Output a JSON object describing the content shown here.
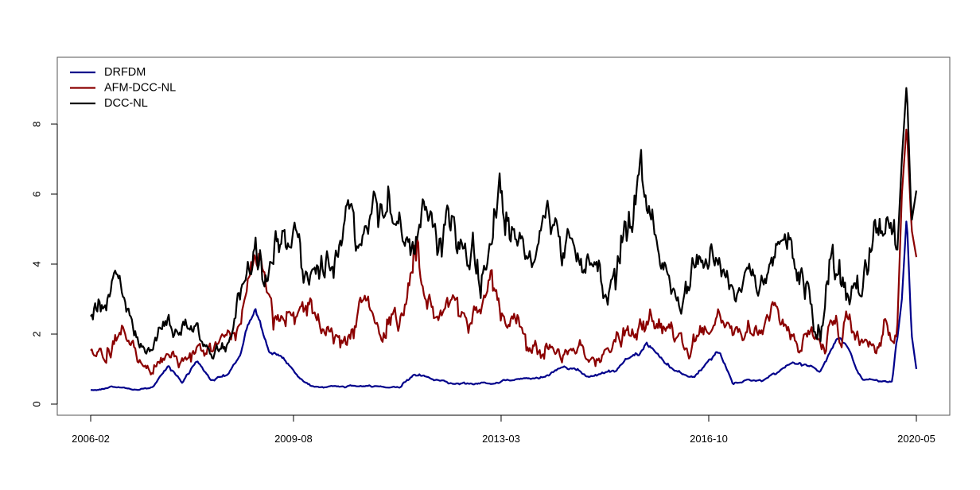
{
  "chart_data": {
    "type": "line",
    "title": "",
    "xlabel": "",
    "ylabel": "",
    "x_start": "2006-02",
    "x_end": "2020-05",
    "x_step": "week",
    "xlim": [
      "2006-02",
      "2020-05"
    ],
    "ylim": [
      0,
      9.3
    ],
    "x_ticks": [
      "2006-02",
      "2009-08",
      "2013-03",
      "2016-10",
      "2020-05"
    ],
    "y_ticks": [
      0,
      2,
      4,
      6,
      8
    ],
    "legend_position": "top-left",
    "grid": false,
    "series": [
      {
        "name": "DRFDM",
        "color": "#00008b",
        "key_points": [
          [
            "2006-02",
            0.4
          ],
          [
            "2006-07",
            0.5
          ],
          [
            "2006-12",
            0.4
          ],
          [
            "2007-03",
            0.5
          ],
          [
            "2007-06",
            1.1
          ],
          [
            "2007-09",
            0.6
          ],
          [
            "2007-12",
            1.2
          ],
          [
            "2008-03",
            0.7
          ],
          [
            "2008-06",
            0.8
          ],
          [
            "2008-09",
            1.4
          ],
          [
            "2008-12",
            2.7
          ],
          [
            "2009-03",
            1.5
          ],
          [
            "2009-06",
            1.3
          ],
          [
            "2009-09",
            0.8
          ],
          [
            "2009-12",
            0.5
          ],
          [
            "2010-06",
            0.5
          ],
          [
            "2011-01",
            0.5
          ],
          [
            "2011-06",
            0.5
          ],
          [
            "2011-09",
            0.9
          ],
          [
            "2012-01",
            0.7
          ],
          [
            "2012-06",
            0.6
          ],
          [
            "2012-12",
            0.6
          ],
          [
            "2013-06",
            0.7
          ],
          [
            "2013-12",
            0.8
          ],
          [
            "2014-03",
            1.1
          ],
          [
            "2014-09",
            0.8
          ],
          [
            "2015-03",
            1.0
          ],
          [
            "2015-09",
            1.7
          ],
          [
            "2016-03",
            1.0
          ],
          [
            "2016-07",
            0.8
          ],
          [
            "2016-12",
            1.5
          ],
          [
            "2017-03",
            0.6
          ],
          [
            "2017-09",
            0.7
          ],
          [
            "2018-03",
            1.2
          ],
          [
            "2018-09",
            1.0
          ],
          [
            "2019-01",
            2.0
          ],
          [
            "2019-06",
            0.7
          ],
          [
            "2019-12",
            0.6
          ],
          [
            "2020-02",
            3.0
          ],
          [
            "2020-03",
            5.4
          ],
          [
            "2020-04",
            2.0
          ],
          [
            "2020-05",
            1.0
          ]
        ]
      },
      {
        "name": "AFM-DCC-NL",
        "color": "#8b0000",
        "key_points": [
          [
            "2006-02",
            1.5
          ],
          [
            "2006-05",
            1.7
          ],
          [
            "2006-09",
            2.6
          ],
          [
            "2006-12",
            1.3
          ],
          [
            "2007-03",
            1.4
          ],
          [
            "2007-06",
            1.7
          ],
          [
            "2007-09",
            1.5
          ],
          [
            "2007-12",
            1.8
          ],
          [
            "2008-03",
            1.4
          ],
          [
            "2008-06",
            1.6
          ],
          [
            "2008-09",
            1.9
          ],
          [
            "2008-12",
            3.9
          ],
          [
            "2009-03",
            3.3
          ],
          [
            "2009-06",
            3.2
          ],
          [
            "2009-09",
            2.8
          ],
          [
            "2009-12",
            2.5
          ],
          [
            "2010-06",
            2.5
          ],
          [
            "2011-01",
            2.4
          ],
          [
            "2011-06",
            2.5
          ],
          [
            "2011-09",
            3.9
          ],
          [
            "2012-01",
            2.5
          ],
          [
            "2012-06",
            2.5
          ],
          [
            "2012-12",
            2.6
          ],
          [
            "2013-01",
            3.5
          ],
          [
            "2013-04",
            2.3
          ],
          [
            "2013-09",
            2.2
          ],
          [
            "2014-01",
            1.6
          ],
          [
            "2014-06",
            1.5
          ],
          [
            "2014-12",
            1.4
          ],
          [
            "2015-03",
            2.0
          ],
          [
            "2015-09",
            2.2
          ],
          [
            "2016-01",
            2.2
          ],
          [
            "2016-06",
            1.6
          ],
          [
            "2016-12",
            2.1
          ],
          [
            "2017-04",
            1.7
          ],
          [
            "2017-09",
            2.4
          ],
          [
            "2018-03",
            2.6
          ],
          [
            "2018-09",
            1.7
          ],
          [
            "2019-01",
            2.6
          ],
          [
            "2019-06",
            1.8
          ],
          [
            "2019-12",
            2.2
          ],
          [
            "2020-01",
            2.0
          ],
          [
            "2020-02",
            6.0
          ],
          [
            "2020-03",
            8.0
          ],
          [
            "2020-04",
            5.0
          ],
          [
            "2020-05",
            4.2
          ]
        ]
      },
      {
        "name": "DCC-NL",
        "color": "#000000",
        "key_points": [
          [
            "2006-02",
            2.6
          ],
          [
            "2006-05",
            3.1
          ],
          [
            "2006-09",
            3.0
          ],
          [
            "2006-12",
            2.0
          ],
          [
            "2007-03",
            1.8
          ],
          [
            "2007-06",
            2.1
          ],
          [
            "2007-09",
            2.0
          ],
          [
            "2007-12",
            2.4
          ],
          [
            "2008-03",
            1.7
          ],
          [
            "2008-06",
            1.9
          ],
          [
            "2008-09",
            2.6
          ],
          [
            "2008-12",
            4.4
          ],
          [
            "2009-03",
            4.0
          ],
          [
            "2009-06",
            4.3
          ],
          [
            "2009-09",
            4.2
          ],
          [
            "2009-12",
            4.7
          ],
          [
            "2010-06",
            4.9
          ],
          [
            "2011-01",
            4.7
          ],
          [
            "2011-06",
            4.8
          ],
          [
            "2011-09",
            5.3
          ],
          [
            "2012-01",
            5.1
          ],
          [
            "2012-06",
            5.0
          ],
          [
            "2012-12",
            5.5
          ],
          [
            "2013-06",
            4.5
          ],
          [
            "2013-12",
            4.2
          ],
          [
            "2014-06",
            4.0
          ],
          [
            "2014-12",
            3.8
          ],
          [
            "2015-03",
            4.3
          ],
          [
            "2015-09",
            4.8
          ],
          [
            "2016-01",
            4.0
          ],
          [
            "2016-06",
            3.2
          ],
          [
            "2016-12",
            3.6
          ],
          [
            "2017-03",
            3.1
          ],
          [
            "2017-09",
            3.4
          ],
          [
            "2018-03",
            4.0
          ],
          [
            "2018-09",
            4.0
          ],
          [
            "2019-01",
            4.8
          ],
          [
            "2019-06",
            4.4
          ],
          [
            "2019-12",
            4.4
          ],
          [
            "2020-01",
            4.2
          ],
          [
            "2020-02",
            7.0
          ],
          [
            "2020-03",
            9.2
          ],
          [
            "2020-04",
            5.2
          ],
          [
            "2020-05",
            6.1
          ]
        ]
      }
    ]
  }
}
